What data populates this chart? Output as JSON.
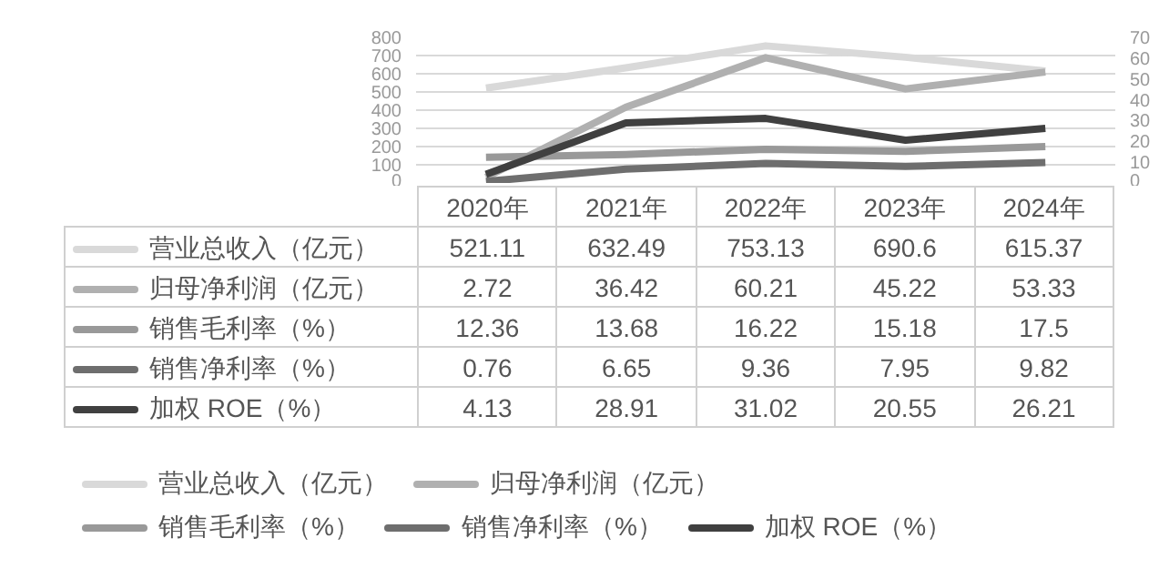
{
  "chart_data": {
    "type": "line",
    "categories": [
      "2020年",
      "2021年",
      "2022年",
      "2023年",
      "2024年"
    ],
    "series": [
      {
        "name": "营业总收入（亿元）",
        "color": "#d9d9d9",
        "values": [
          521.11,
          632.49,
          753.13,
          690.6,
          615.37
        ]
      },
      {
        "name": "归母净利润（亿元）",
        "color": "#b0b0b0",
        "values": [
          2.72,
          36.42,
          60.21,
          45.22,
          53.33
        ],
        "axis": "y2"
      },
      {
        "name": "销售毛利率（%）",
        "color": "#999999",
        "values": [
          12.36,
          13.68,
          16.22,
          15.18,
          17.5
        ],
        "axis": "y2"
      },
      {
        "name": "销售净利率（%）",
        "color": "#6e6e6e",
        "values": [
          0.76,
          6.65,
          9.36,
          7.95,
          9.82
        ],
        "axis": "y2"
      },
      {
        "name": "加权 ROE（%）",
        "color": "#404040",
        "values": [
          4.13,
          28.91,
          31.02,
          20.55,
          26.21
        ],
        "axis": "y2"
      }
    ],
    "ylim": [
      0,
      800
    ],
    "yticks": [
      0,
      100,
      200,
      300,
      400,
      500,
      600,
      700,
      800
    ],
    "y2lim": [
      0,
      70
    ],
    "y2ticks": [
      0,
      10,
      20,
      30,
      40,
      50,
      60,
      70
    ],
    "grid": "y",
    "legend": "bottom",
    "data_labels": true,
    "marker": "none",
    "line_style": "solid"
  }
}
